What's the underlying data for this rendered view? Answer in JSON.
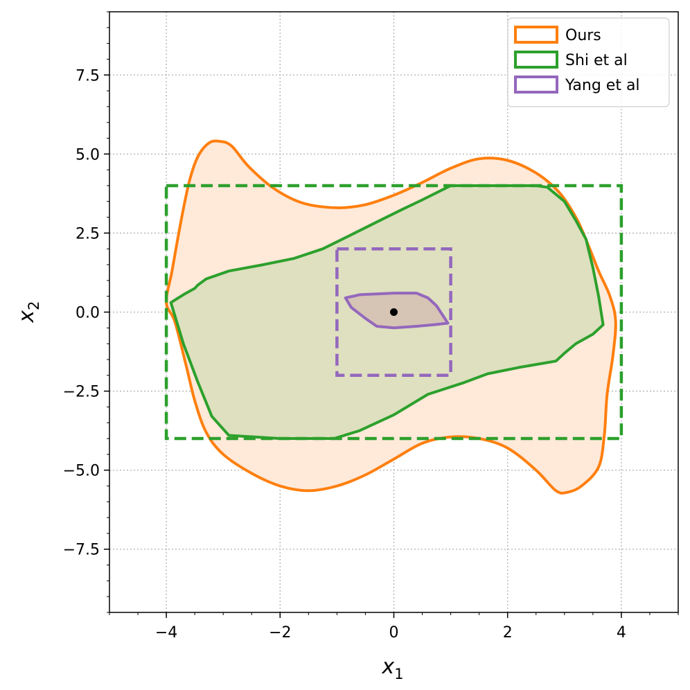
{
  "chart_data": {
    "type": "area",
    "xlabel": "x",
    "xlabel_sub": "1",
    "ylabel": "x",
    "ylabel_sub": "2",
    "xlim": [
      -5,
      5
    ],
    "ylim": [
      -9.5,
      9.5
    ],
    "x_ticks": [
      -4,
      -2,
      0,
      2,
      4
    ],
    "x_tick_labels": [
      "−4",
      "−2",
      "0",
      "2",
      "4"
    ],
    "y_ticks": [
      -7.5,
      -5.0,
      -2.5,
      0.0,
      2.5,
      5.0,
      7.5
    ],
    "y_tick_labels": [
      "−7.5",
      "−5.0",
      "−2.5",
      "0.0",
      "2.5",
      "5.0",
      "7.5"
    ],
    "x_minor_step": 0.5,
    "y_minor_step": 0.5,
    "grid": true,
    "legend_position": "top-right",
    "legend": [
      {
        "label": "Ours",
        "color": "#ff7f0e"
      },
      {
        "label": "Shi et al",
        "color": "#2ca02c"
      },
      {
        "label": "Yang et al",
        "color": "#9467bd"
      }
    ],
    "series": [
      {
        "name": "Ours",
        "kind": "filled_region",
        "color": "#ff7f0e",
        "fill": "#ffe9d9",
        "points": [
          [
            -4.0,
            0.3
          ],
          [
            -3.9,
            1.3
          ],
          [
            -3.75,
            2.8
          ],
          [
            -3.6,
            4.1
          ],
          [
            -3.45,
            4.9
          ],
          [
            -3.25,
            5.35
          ],
          [
            -3.05,
            5.4
          ],
          [
            -2.85,
            5.25
          ],
          [
            -2.55,
            4.6
          ],
          [
            -2.1,
            3.9
          ],
          [
            -1.6,
            3.45
          ],
          [
            -1.0,
            3.3
          ],
          [
            -0.5,
            3.4
          ],
          [
            0.0,
            3.7
          ],
          [
            0.5,
            4.1
          ],
          [
            1.0,
            4.55
          ],
          [
            1.5,
            4.85
          ],
          [
            2.0,
            4.8
          ],
          [
            2.5,
            4.4
          ],
          [
            2.9,
            3.8
          ],
          [
            3.2,
            3.0
          ],
          [
            3.4,
            2.2
          ],
          [
            3.6,
            1.3
          ],
          [
            3.8,
            0.5
          ],
          [
            3.9,
            -0.3
          ],
          [
            3.85,
            -1.4
          ],
          [
            3.75,
            -2.6
          ],
          [
            3.7,
            -3.9
          ],
          [
            3.6,
            -4.9
          ],
          [
            3.3,
            -5.5
          ],
          [
            3.05,
            -5.7
          ],
          [
            2.85,
            -5.65
          ],
          [
            2.5,
            -5.0
          ],
          [
            2.0,
            -4.3
          ],
          [
            1.5,
            -4.0
          ],
          [
            1.0,
            -3.95
          ],
          [
            0.5,
            -4.15
          ],
          [
            0.0,
            -4.65
          ],
          [
            -0.5,
            -5.15
          ],
          [
            -1.0,
            -5.5
          ],
          [
            -1.5,
            -5.65
          ],
          [
            -2.0,
            -5.5
          ],
          [
            -2.5,
            -5.1
          ],
          [
            -3.0,
            -4.5
          ],
          [
            -3.3,
            -3.8
          ],
          [
            -3.5,
            -2.8
          ],
          [
            -3.65,
            -1.7
          ],
          [
            -3.85,
            -0.3
          ],
          [
            -4.0,
            0.3
          ]
        ]
      },
      {
        "name": "Shi et al",
        "kind": "filled_region",
        "color": "#2ca02c",
        "fill": "#dee0bf",
        "points": [
          [
            -3.92,
            0.3
          ],
          [
            -3.7,
            0.55
          ],
          [
            -3.5,
            0.75
          ],
          [
            -3.45,
            0.85
          ],
          [
            -3.3,
            1.05
          ],
          [
            -2.9,
            1.3
          ],
          [
            -2.3,
            1.5
          ],
          [
            -1.75,
            1.7
          ],
          [
            -1.25,
            2.0
          ],
          [
            -0.8,
            2.4
          ],
          [
            -0.3,
            2.85
          ],
          [
            0.15,
            3.25
          ],
          [
            0.5,
            3.55
          ],
          [
            1.0,
            4.0
          ],
          [
            1.5,
            4.0
          ],
          [
            2.0,
            4.0
          ],
          [
            2.5,
            4.0
          ],
          [
            2.7,
            3.95
          ],
          [
            3.0,
            3.5
          ],
          [
            3.2,
            2.9
          ],
          [
            3.38,
            2.3
          ],
          [
            3.5,
            1.4
          ],
          [
            3.6,
            0.5
          ],
          [
            3.68,
            -0.4
          ],
          [
            3.5,
            -0.7
          ],
          [
            3.2,
            -1.0
          ],
          [
            3.0,
            -1.3
          ],
          [
            2.85,
            -1.55
          ],
          [
            2.2,
            -1.75
          ],
          [
            1.65,
            -1.95
          ],
          [
            1.2,
            -2.25
          ],
          [
            0.6,
            -2.6
          ],
          [
            0.0,
            -3.25
          ],
          [
            -0.6,
            -3.75
          ],
          [
            -1.05,
            -4.0
          ],
          [
            -2.0,
            -4.0
          ],
          [
            -2.9,
            -3.9
          ],
          [
            -3.2,
            -3.3
          ],
          [
            -3.45,
            -2.2
          ],
          [
            -3.7,
            -1.0
          ],
          [
            -3.92,
            0.3
          ]
        ]
      },
      {
        "name": "Shi et al",
        "kind": "dashed_box",
        "color": "#2ca02c",
        "x_range": [
          -4,
          4
        ],
        "y_range": [
          -4,
          4
        ]
      },
      {
        "name": "Yang et al",
        "kind": "filled_region",
        "color": "#9467bd",
        "fill": "#d6c4b4",
        "points": [
          [
            -0.85,
            0.45
          ],
          [
            -0.6,
            0.55
          ],
          [
            0.0,
            0.6
          ],
          [
            0.4,
            0.6
          ],
          [
            0.6,
            0.45
          ],
          [
            0.75,
            0.2
          ],
          [
            0.95,
            -0.35
          ],
          [
            0.7,
            -0.4
          ],
          [
            0.4,
            -0.45
          ],
          [
            0.0,
            -0.5
          ],
          [
            -0.3,
            -0.45
          ],
          [
            -0.5,
            -0.2
          ],
          [
            -0.75,
            0.15
          ],
          [
            -0.85,
            0.45
          ]
        ]
      },
      {
        "name": "Yang et al",
        "kind": "dashed_box",
        "color": "#9467bd",
        "x_range": [
          -1,
          1
        ],
        "y_range": [
          -2,
          2
        ]
      },
      {
        "name": "",
        "kind": "point",
        "color": "#000000",
        "x": 0,
        "y": 0
      }
    ]
  }
}
